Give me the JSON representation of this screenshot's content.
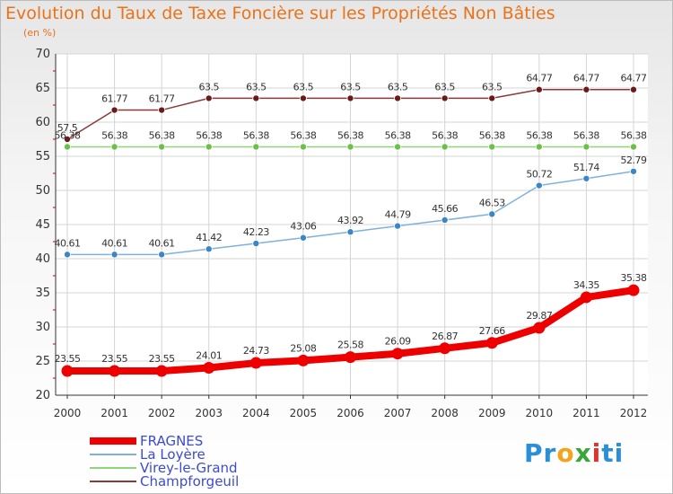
{
  "title": "Evolution du Taux de Taxe Foncière sur les Propriétés Non Bâties",
  "subtitle": "(en %)",
  "logo": {
    "parts": [
      "Pr",
      "o",
      "x",
      "i",
      "ti"
    ],
    "colors": [
      "#2a8fd6",
      "#f2a51a",
      "#3aa63a",
      "#e2322d",
      "#2a8fd6"
    ]
  },
  "chart_data": {
    "type": "line",
    "x": [
      "2000",
      "2001",
      "2002",
      "2003",
      "2004",
      "2005",
      "2006",
      "2007",
      "2008",
      "2009",
      "2010",
      "2011",
      "2012"
    ],
    "ylim": [
      20,
      70
    ],
    "yticks": [
      20,
      25,
      30,
      35,
      40,
      45,
      50,
      55,
      60,
      65,
      70
    ],
    "grid": true,
    "legend_position": "bottom-left",
    "series": [
      {
        "name": "FRAGNES",
        "color": "#ee0000",
        "values": [
          23.55,
          23.55,
          23.55,
          24.01,
          24.73,
          25.08,
          25.58,
          26.09,
          26.87,
          27.66,
          29.87,
          34.35,
          35.38
        ],
        "labels": [
          "23.55",
          "23.55",
          "23.55",
          "24.01",
          "24.73",
          "25.08",
          "25.58",
          "26.09",
          "26.87",
          "27.66",
          "29.87",
          "34.35",
          "35.38"
        ]
      },
      {
        "name": "La Loyère",
        "color": "#7fb1dc",
        "marker": "#3d86c6",
        "values": [
          40.61,
          40.61,
          40.61,
          41.42,
          42.23,
          43.06,
          43.92,
          44.79,
          45.66,
          46.53,
          50.72,
          51.74,
          52.79
        ],
        "labels": [
          "40.61",
          "40.61",
          "40.61",
          "41.42",
          "42.23",
          "43.06",
          "43.92",
          "44.79",
          "45.66",
          "46.53",
          "50.72",
          "51.74",
          "52.79"
        ]
      },
      {
        "name": "Virey-le-Grand",
        "color": "#8fd47a",
        "marker": "#6cc04a",
        "values": [
          56.38,
          56.38,
          56.38,
          56.38,
          56.38,
          56.38,
          56.38,
          56.38,
          56.38,
          56.38,
          56.38,
          56.38,
          56.38
        ],
        "labels": [
          "56.38",
          "56.38",
          "56.38",
          "56.38",
          "56.38",
          "56.38",
          "56.38",
          "56.38",
          "56.38",
          "56.38",
          "56.38",
          "56.38",
          "56.38"
        ]
      },
      {
        "name": "Champforgeuil",
        "color": "#8b3a3a",
        "marker": "#6b1a1a",
        "values": [
          57.5,
          61.77,
          61.77,
          63.5,
          63.5,
          63.5,
          63.5,
          63.5,
          63.5,
          63.5,
          64.77,
          64.77,
          64.77
        ],
        "labels": [
          "57.5",
          "61.77",
          "61.77",
          "63.5",
          "63.5",
          "63.5",
          "63.5",
          "63.5",
          "63.5",
          "63.5",
          "64.77",
          "64.77",
          "64.77"
        ]
      }
    ]
  }
}
